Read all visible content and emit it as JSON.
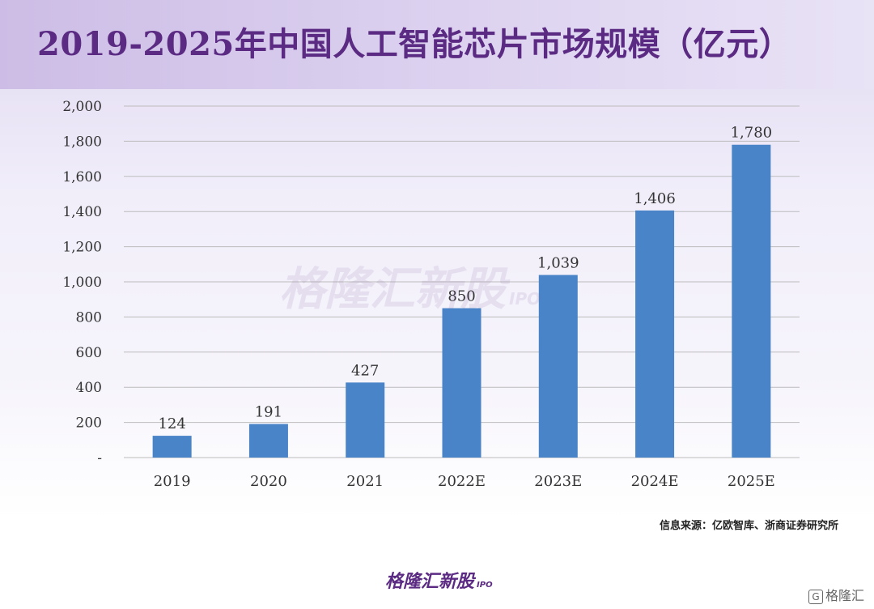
{
  "title": "2019-2025年中国人工智能芯片市场规模（亿元）",
  "source": "信息来源：亿欧智库、浙商证券研究所",
  "watermark": {
    "main": "格隆汇新股",
    "sub": "IPO"
  },
  "brand": {
    "main": "格隆汇新股",
    "sub": "IPO"
  },
  "corner_logo": {
    "glyph": "G",
    "text": "格隆汇"
  },
  "colors": {
    "bar": "#4a84c8",
    "title": "#5b2a82",
    "grid": "#bcbcbc"
  },
  "chart_data": {
    "type": "bar",
    "title": "2019-2025年中国人工智能芯片市场规模（亿元）",
    "categories": [
      "2019",
      "2020",
      "2021",
      "2022E",
      "2023E",
      "2024E",
      "2025E"
    ],
    "values": [
      124,
      191,
      427,
      850,
      1039,
      1406,
      1780
    ],
    "data_labels": [
      "124",
      "191",
      "427",
      "850",
      "1,039",
      "1,406",
      "1,780"
    ],
    "ylim": [
      0,
      2000
    ],
    "yticks": [
      0,
      200,
      400,
      600,
      800,
      1000,
      1200,
      1400,
      1600,
      1800,
      2000
    ],
    "ytick_labels": [
      "-",
      "200",
      "400",
      "600",
      "800",
      "1,000",
      "1,200",
      "1,400",
      "1,600",
      "1,800",
      "2,000"
    ],
    "xlabel": "",
    "ylabel": "",
    "grid": true,
    "legend": false
  }
}
